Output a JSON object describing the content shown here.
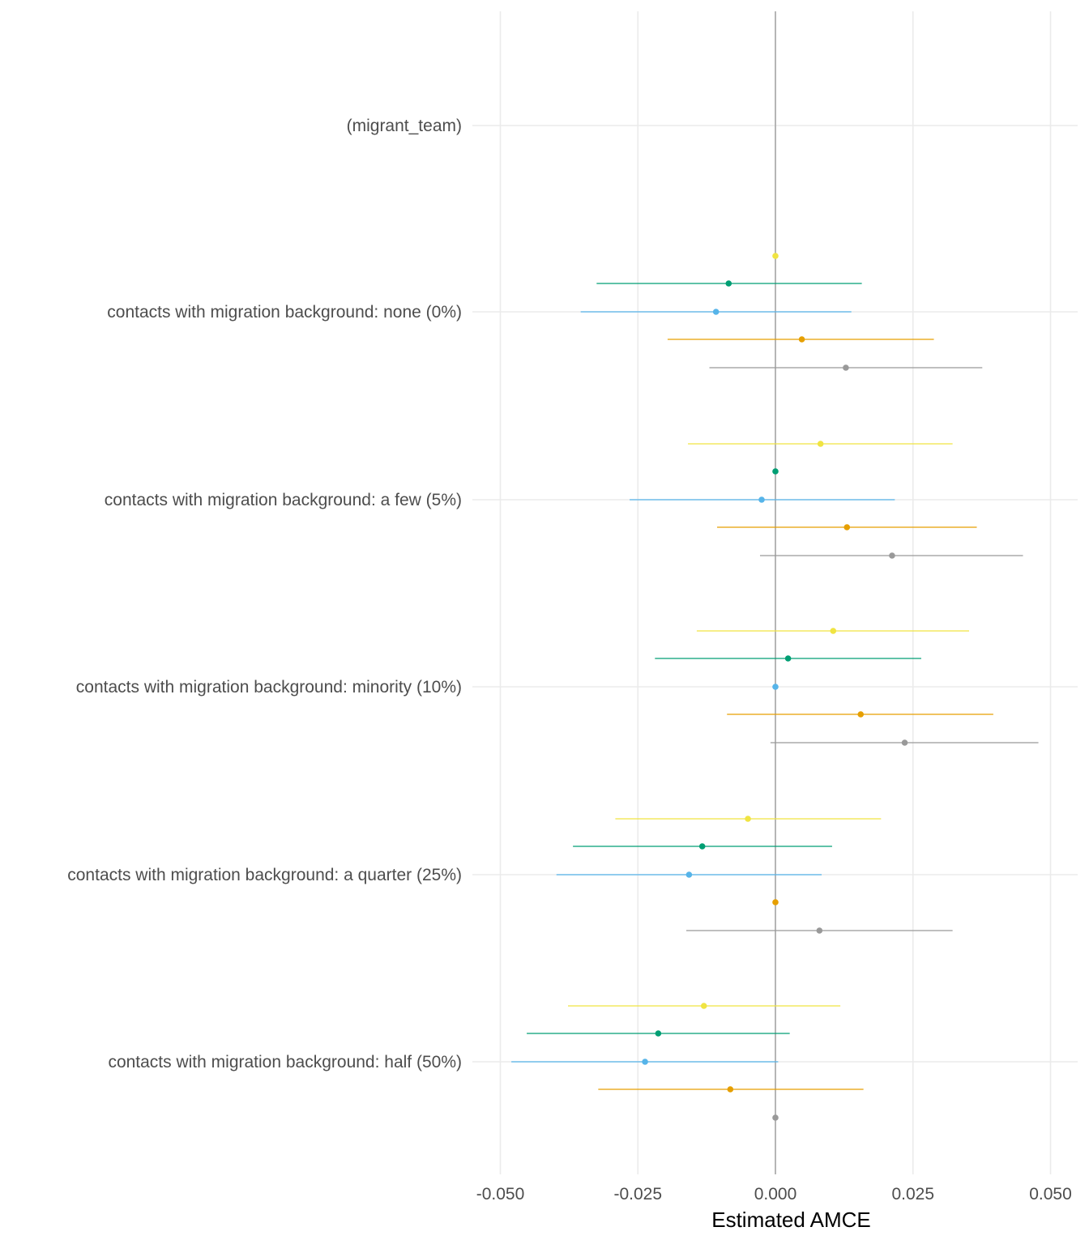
{
  "chart_data": {
    "type": "scatter",
    "subtype": "coefficient-plot-with-confidence-intervals",
    "xlabel": "Estimated AMCE",
    "ylabel": "",
    "xlim": [
      -0.052,
      0.054
    ],
    "xticks": [
      -0.05,
      -0.025,
      0.0,
      0.025,
      0.05
    ],
    "xtick_labels": [
      "-0.050",
      "-0.025",
      "0.000",
      "0.025",
      "0.050"
    ],
    "reference_line_x": 0,
    "grid": true,
    "legend": "none",
    "categories": [
      "(migrant_team)",
      "contacts with migration background: none (0%)",
      "contacts with migration background: a few (5%)",
      "contacts with migration background: minority (10%)",
      "contacts with migration background: a quarter (25%)",
      "contacts with migration background: half (50%)"
    ],
    "series": [
      {
        "color": "#F0E442",
        "points": [
          {
            "category": 1,
            "estimate": 0.0,
            "lower": null,
            "upper": null
          },
          {
            "category": 2,
            "estimate": 0.0082,
            "lower": -0.0159,
            "upper": 0.0322
          },
          {
            "category": 3,
            "estimate": 0.0105,
            "lower": -0.0143,
            "upper": 0.0352
          },
          {
            "category": 4,
            "estimate": -0.005,
            "lower": -0.0291,
            "upper": 0.0192
          },
          {
            "category": 5,
            "estimate": -0.013,
            "lower": -0.0377,
            "upper": 0.0118
          }
        ]
      },
      {
        "color": "#009E73",
        "points": [
          {
            "category": 1,
            "estimate": -0.0085,
            "lower": -0.0325,
            "upper": 0.0157
          },
          {
            "category": 2,
            "estimate": 0.0,
            "lower": null,
            "upper": null
          },
          {
            "category": 3,
            "estimate": 0.0023,
            "lower": -0.0219,
            "upper": 0.0265
          },
          {
            "category": 4,
            "estimate": -0.0133,
            "lower": -0.0368,
            "upper": 0.0103
          },
          {
            "category": 5,
            "estimate": -0.0213,
            "lower": -0.0452,
            "upper": 0.0026
          }
        ]
      },
      {
        "color": "#56B4E9",
        "points": [
          {
            "category": 1,
            "estimate": -0.0108,
            "lower": -0.0354,
            "upper": 0.0138
          },
          {
            "category": 2,
            "estimate": -0.0025,
            "lower": -0.0265,
            "upper": 0.0217
          },
          {
            "category": 3,
            "estimate": 0.0,
            "lower": null,
            "upper": null
          },
          {
            "category": 4,
            "estimate": -0.0157,
            "lower": -0.0398,
            "upper": 0.0084
          },
          {
            "category": 5,
            "estimate": -0.0237,
            "lower": -0.048,
            "upper": 0.0005
          }
        ]
      },
      {
        "color": "#E69F00",
        "points": [
          {
            "category": 1,
            "estimate": 0.0048,
            "lower": -0.0196,
            "upper": 0.0288
          },
          {
            "category": 2,
            "estimate": 0.013,
            "lower": -0.0106,
            "upper": 0.0366
          },
          {
            "category": 3,
            "estimate": 0.0155,
            "lower": -0.0088,
            "upper": 0.0396
          },
          {
            "category": 4,
            "estimate": 0.0,
            "lower": null,
            "upper": null
          },
          {
            "category": 5,
            "estimate": -0.0082,
            "lower": -0.0322,
            "upper": 0.016
          }
        ]
      },
      {
        "color": "#999999",
        "points": [
          {
            "category": 1,
            "estimate": 0.0128,
            "lower": -0.012,
            "upper": 0.0376
          },
          {
            "category": 2,
            "estimate": 0.0212,
            "lower": -0.0028,
            "upper": 0.045
          },
          {
            "category": 3,
            "estimate": 0.0235,
            "lower": -0.0009,
            "upper": 0.0478
          },
          {
            "category": 4,
            "estimate": 0.008,
            "lower": -0.0162,
            "upper": 0.0322
          },
          {
            "category": 5,
            "estimate": 0.0,
            "lower": null,
            "upper": null
          }
        ]
      }
    ]
  },
  "colors": {
    "grid": "#ebebeb",
    "reference_line": "#a6a6a6",
    "text": "#4d4d4d"
  }
}
